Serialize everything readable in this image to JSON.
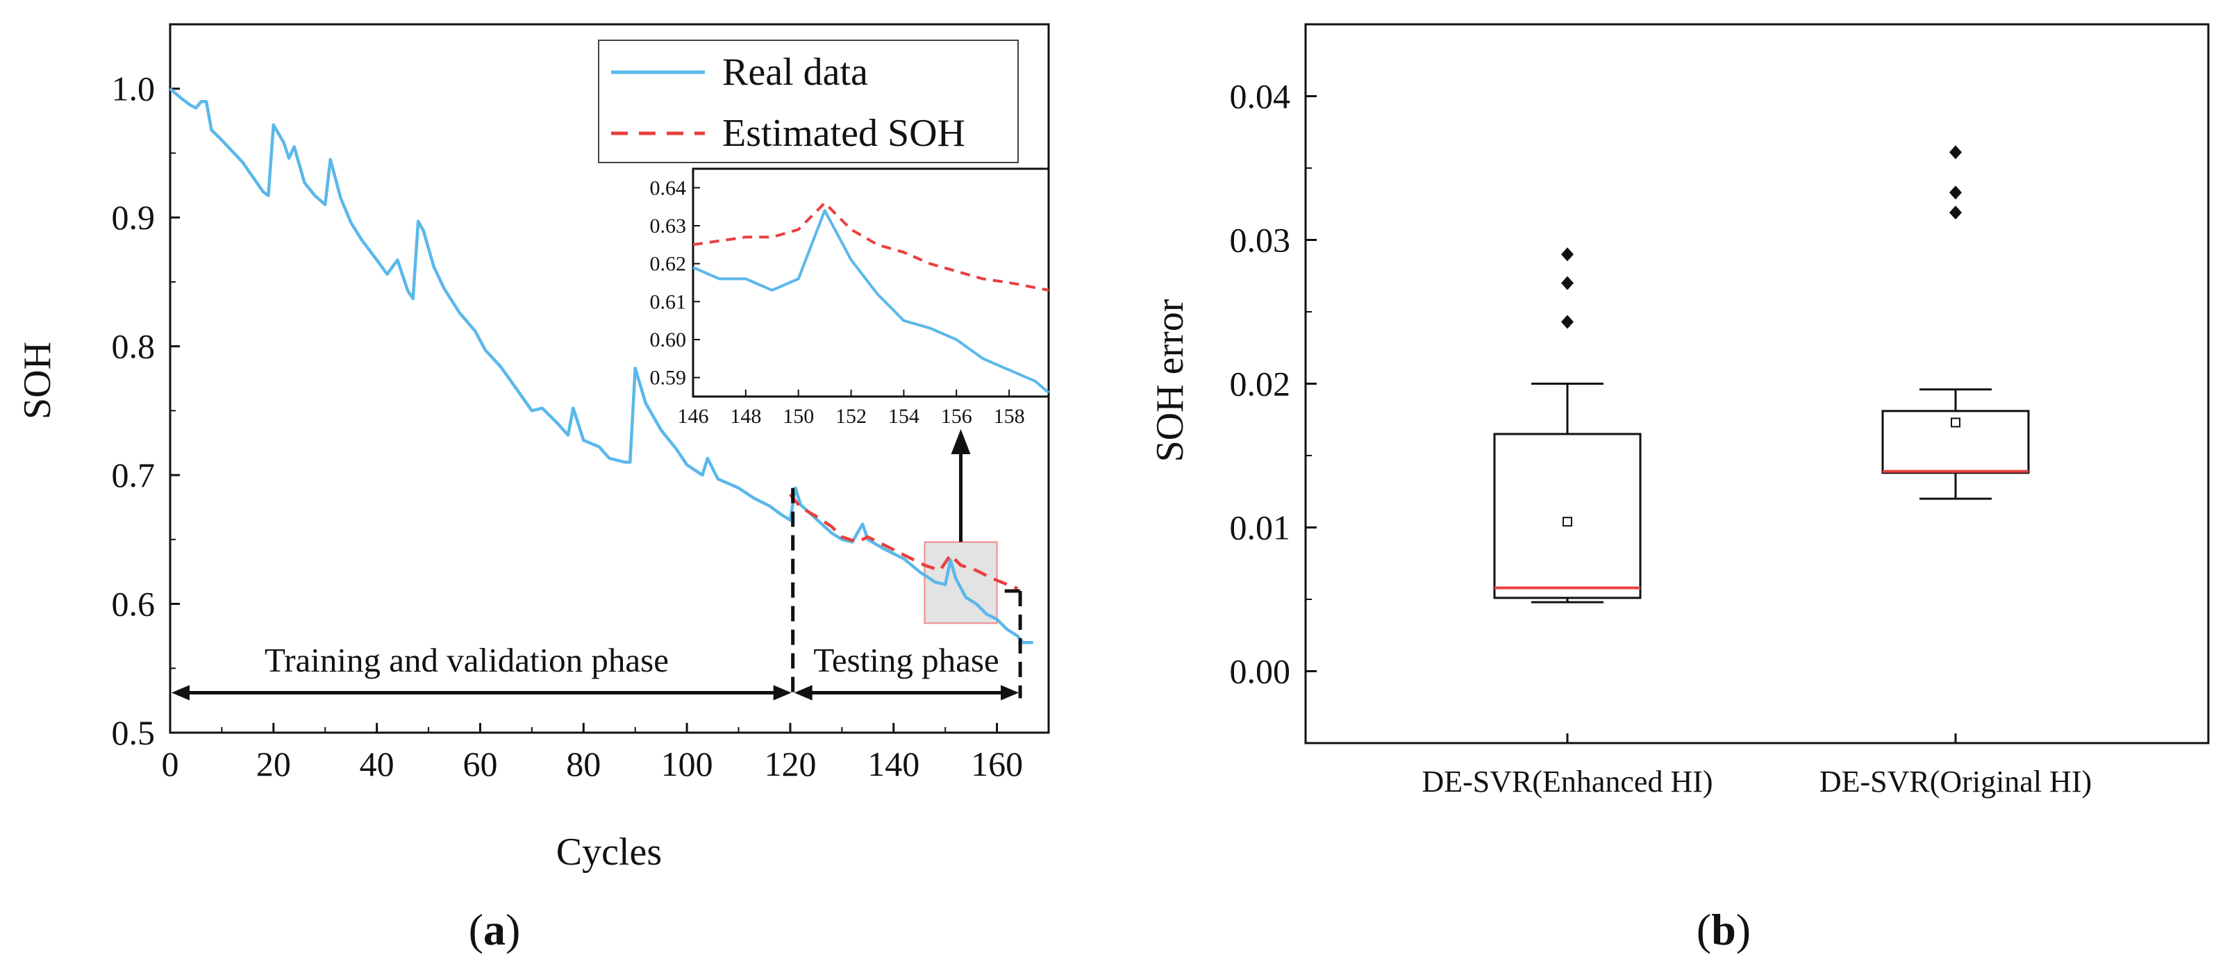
{
  "colors": {
    "real": "#5bb8ea",
    "estimated": "#e8403f",
    "median": "#e8403f",
    "axis": "#111111",
    "highlight_fill": "#d9d9d9",
    "highlight_stroke": "#f08a8a"
  },
  "panel_a": {
    "label_open": "(",
    "label_letter": "a",
    "label_close": ")",
    "phase_train": "Training and validation phase",
    "phase_test": "Testing phase"
  },
  "panel_b": {
    "label_open": "(",
    "label_letter": "b",
    "label_close": ")"
  },
  "chart_data": [
    {
      "id": "a-main",
      "type": "line",
      "xlabel": "Cycles",
      "ylabel": "SOH",
      "xlim": [
        0,
        170
      ],
      "ylim": [
        0.5,
        1.05
      ],
      "xticks": [
        0,
        20,
        40,
        60,
        80,
        100,
        120,
        140,
        160
      ],
      "yticks": [
        0.5,
        0.6,
        0.7,
        0.8,
        0.9,
        1.0
      ],
      "xtick_labels": [
        "0",
        "20",
        "40",
        "60",
        "80",
        "100",
        "120",
        "140",
        "160"
      ],
      "ytick_labels": [
        "0.5",
        "0.6",
        "0.7",
        "0.8",
        "0.9",
        "1.0"
      ],
      "legend": [
        "Real data",
        "Estimated SOH"
      ],
      "legend_position": "top-right",
      "series": [
        {
          "name": "Real data",
          "points": [
            [
              0,
              1.0
            ],
            [
              2,
              0.993
            ],
            [
              4,
              0.987
            ],
            [
              5,
              0.985
            ],
            [
              6,
              0.99
            ],
            [
              7,
              0.99
            ],
            [
              8,
              0.968
            ],
            [
              10,
              0.96
            ],
            [
              14,
              0.943
            ],
            [
              18,
              0.92
            ],
            [
              19,
              0.917
            ],
            [
              20,
              0.972
            ],
            [
              22,
              0.958
            ],
            [
              23,
              0.946
            ],
            [
              24,
              0.955
            ],
            [
              26,
              0.927
            ],
            [
              28,
              0.917
            ],
            [
              30,
              0.91
            ],
            [
              31,
              0.945
            ],
            [
              33,
              0.915
            ],
            [
              35,
              0.896
            ],
            [
              37,
              0.883
            ],
            [
              40,
              0.867
            ],
            [
              42,
              0.856
            ],
            [
              44,
              0.867
            ],
            [
              46,
              0.843
            ],
            [
              47,
              0.837
            ],
            [
              48,
              0.897
            ],
            [
              49,
              0.89
            ],
            [
              51,
              0.862
            ],
            [
              53,
              0.845
            ],
            [
              56,
              0.826
            ],
            [
              59,
              0.812
            ],
            [
              61,
              0.797
            ],
            [
              64,
              0.784
            ],
            [
              67,
              0.767
            ],
            [
              70,
              0.75
            ],
            [
              72,
              0.752
            ],
            [
              75,
              0.74
            ],
            [
              77,
              0.731
            ],
            [
              78,
              0.752
            ],
            [
              80,
              0.727
            ],
            [
              83,
              0.722
            ],
            [
              85,
              0.713
            ],
            [
              88,
              0.71
            ],
            [
              89,
              0.71
            ],
            [
              90,
              0.783
            ],
            [
              92,
              0.756
            ],
            [
              95,
              0.735
            ],
            [
              98,
              0.72
            ],
            [
              100,
              0.708
            ],
            [
              103,
              0.7
            ],
            [
              104,
              0.713
            ],
            [
              106,
              0.697
            ],
            [
              110,
              0.69
            ],
            [
              113,
              0.682
            ],
            [
              116,
              0.676
            ],
            [
              118,
              0.67
            ],
            [
              120,
              0.665
            ],
            [
              121,
              0.69
            ],
            [
              122,
              0.677
            ],
            [
              125,
              0.666
            ],
            [
              128,
              0.655
            ],
            [
              130,
              0.65
            ],
            [
              132,
              0.648
            ],
            [
              134,
              0.662
            ],
            [
              135,
              0.65
            ],
            [
              138,
              0.643
            ],
            [
              142,
              0.635
            ],
            [
              145,
              0.625
            ],
            [
              148,
              0.617
            ],
            [
              150,
              0.615
            ],
            [
              151,
              0.634
            ],
            [
              152,
              0.62
            ],
            [
              154,
              0.605
            ],
            [
              156,
              0.6
            ],
            [
              158,
              0.592
            ],
            [
              160,
              0.588
            ],
            [
              162,
              0.58
            ],
            [
              164,
              0.575
            ],
            [
              165,
              0.57
            ],
            [
              167,
              0.57
            ]
          ]
        },
        {
          "name": "Estimated SOH",
          "points": [
            [
              120,
              0.685
            ],
            [
              122,
              0.675
            ],
            [
              125,
              0.668
            ],
            [
              128,
              0.66
            ],
            [
              130,
              0.652
            ],
            [
              133,
              0.648
            ],
            [
              135,
              0.652
            ],
            [
              138,
              0.646
            ],
            [
              142,
              0.638
            ],
            [
              146,
              0.63
            ],
            [
              149,
              0.626
            ],
            [
              151,
              0.638
            ],
            [
              153,
              0.63
            ],
            [
              156,
              0.626
            ],
            [
              159,
              0.62
            ],
            [
              162,
              0.615
            ],
            [
              164,
              0.612
            ]
          ]
        }
      ]
    },
    {
      "id": "a-inset",
      "type": "line",
      "xlim": [
        146,
        159.5
      ],
      "ylim": [
        0.585,
        0.645
      ],
      "xticks": [
        146,
        148,
        150,
        152,
        154,
        156,
        158
      ],
      "yticks": [
        0.59,
        0.6,
        0.61,
        0.62,
        0.63,
        0.64
      ],
      "xtick_labels": [
        "146",
        "148",
        "150",
        "152",
        "154",
        "156",
        "158"
      ],
      "ytick_labels": [
        "0.59",
        "0.60",
        "0.61",
        "0.62",
        "0.63",
        "0.64"
      ],
      "series": [
        {
          "name": "Real data",
          "points": [
            [
              146,
              0.619
            ],
            [
              147,
              0.616
            ],
            [
              148,
              0.616
            ],
            [
              149,
              0.613
            ],
            [
              150,
              0.616
            ],
            [
              151,
              0.634
            ],
            [
              152,
              0.621
            ],
            [
              153,
              0.612
            ],
            [
              154,
              0.605
            ],
            [
              155,
              0.603
            ],
            [
              156,
              0.6
            ],
            [
              157,
              0.595
            ],
            [
              158,
              0.592
            ],
            [
              159,
              0.589
            ],
            [
              159.5,
              0.586
            ]
          ]
        },
        {
          "name": "Estimated SOH",
          "points": [
            [
              146,
              0.625
            ],
            [
              148,
              0.627
            ],
            [
              149,
              0.627
            ],
            [
              150,
              0.629
            ],
            [
              151,
              0.636
            ],
            [
              152,
              0.629
            ],
            [
              153,
              0.625
            ],
            [
              154,
              0.623
            ],
            [
              155,
              0.62
            ],
            [
              156,
              0.618
            ],
            [
              157,
              0.616
            ],
            [
              158,
              0.615
            ],
            [
              159.5,
              0.613
            ]
          ]
        }
      ]
    },
    {
      "id": "b-box",
      "type": "box",
      "ylabel": "SOH error",
      "ylim": [
        -0.005,
        0.045
      ],
      "yticks": [
        0.0,
        0.01,
        0.02,
        0.03,
        0.04
      ],
      "ytick_labels": [
        "0.00",
        "0.01",
        "0.02",
        "0.03",
        "0.04"
      ],
      "categories": [
        "DE-SVR(Enhanced HI)",
        "DE-SVR(Original HI)"
      ],
      "boxes": [
        {
          "whisker_low": 0.0048,
          "q1": 0.0051,
          "median": 0.0058,
          "q3": 0.0165,
          "whisker_high": 0.02,
          "mean": 0.0104,
          "outliers": [
            0.0243,
            0.027,
            0.029
          ]
        },
        {
          "whisker_low": 0.012,
          "q1": 0.0138,
          "median": 0.0139,
          "q3": 0.0181,
          "whisker_high": 0.0196,
          "mean": 0.0173,
          "outliers": [
            0.0319,
            0.0333,
            0.0361
          ]
        }
      ]
    }
  ]
}
